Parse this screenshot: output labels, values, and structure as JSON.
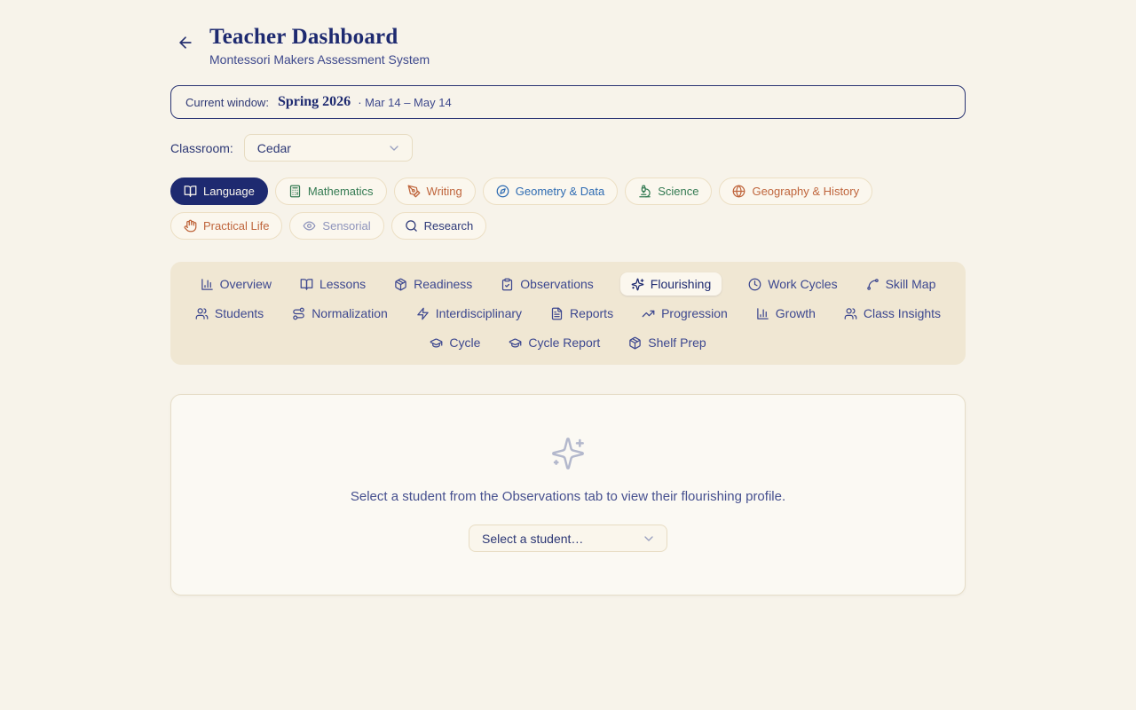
{
  "page": {
    "title": "Teacher Dashboard",
    "subtitle": "Montessori Makers Assessment System"
  },
  "window_banner": {
    "label": "Current window:",
    "term": "Spring 2026",
    "range": "· Mar 14 – May 14"
  },
  "classroom": {
    "label": "Classroom:",
    "selected": "Cedar"
  },
  "subjects": [
    {
      "label": "Language",
      "icon": "book-open",
      "color": "active",
      "active": true
    },
    {
      "label": "Mathematics",
      "icon": "calculator",
      "color": "green"
    },
    {
      "label": "Writing",
      "icon": "pen-tool",
      "color": "rust"
    },
    {
      "label": "Geometry & Data",
      "icon": "compass",
      "color": "blue"
    },
    {
      "label": "Science",
      "icon": "microscope",
      "color": "green"
    },
    {
      "label": "Geography & History",
      "icon": "globe",
      "color": "rust"
    },
    {
      "label": "Practical Life",
      "icon": "hand",
      "color": "rust"
    },
    {
      "label": "Sensorial",
      "icon": "eye",
      "color": "muted"
    },
    {
      "label": "Research",
      "icon": "search",
      "color": "navy"
    }
  ],
  "tabs": [
    {
      "label": "Overview",
      "icon": "bar-chart"
    },
    {
      "label": "Lessons",
      "icon": "book-open"
    },
    {
      "label": "Readiness",
      "icon": "package"
    },
    {
      "label": "Observations",
      "icon": "clipboard-check"
    },
    {
      "label": "Flourishing",
      "icon": "sparkles",
      "active": true
    },
    {
      "label": "Work Cycles",
      "icon": "clock"
    },
    {
      "label": "Skill Map",
      "icon": "spline"
    },
    {
      "label": "Students",
      "icon": "users"
    },
    {
      "label": "Normalization",
      "icon": "route"
    },
    {
      "label": "Interdisciplinary",
      "icon": "zap"
    },
    {
      "label": "Reports",
      "icon": "file-text"
    },
    {
      "label": "Progression",
      "icon": "trending-up"
    },
    {
      "label": "Growth",
      "icon": "bar-chart"
    },
    {
      "label": "Class Insights",
      "icon": "users"
    },
    {
      "label": "Cycle",
      "icon": "graduation-cap"
    },
    {
      "label": "Cycle Report",
      "icon": "graduation-cap"
    },
    {
      "label": "Shelf Prep",
      "icon": "package"
    }
  ],
  "empty_state": {
    "icon": "sparkles",
    "message": "Select a student from the Observations tab to view their flourishing profile.",
    "select_value": "Select a student…"
  },
  "colors": {
    "page_bg": "#f7f3ea",
    "navy": "#1e2a70",
    "slate_text": "#3d488c",
    "tab_bar_bg": "#f0e7d3",
    "chip_bg": "#fbf7ee",
    "chip_border": "#ecdfc4",
    "card_bg": "#fbf9f3",
    "card_border": "#e6ddc8",
    "green": "#337a52",
    "rust": "#bf653c",
    "blue": "#2f6cb3",
    "muted": "#8d93bb"
  }
}
